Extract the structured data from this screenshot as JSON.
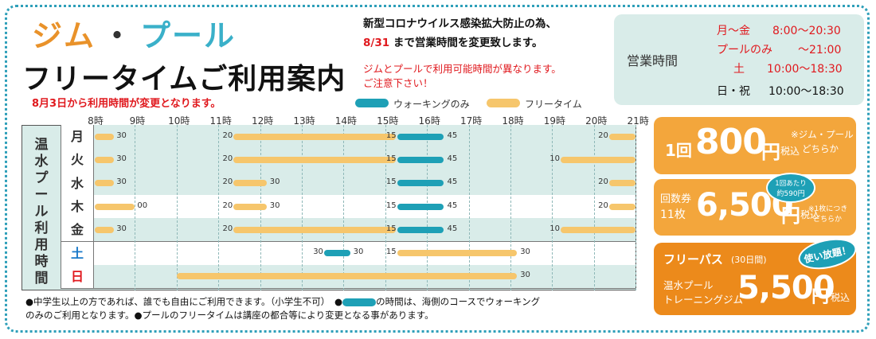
{
  "title": {
    "gym": "ジム",
    "sep": "・",
    "pool": "プール",
    "main": "フリータイムご利用案内"
  },
  "notice": "8月3日から利用時間が変更となります。",
  "covid": {
    "line1": "新型コロナウイルス感染拡大防止の為、",
    "line2_red": "8/31",
    "line2_rest": "まで営業時間を変更致します。",
    "line3": "ジムとプールで利用可能時間が異なります。",
    "line4": "ご注意下さい！"
  },
  "hours": {
    "label": "営業時間",
    "rows": [
      {
        "day": "月〜金",
        "time": "8:00〜20:30",
        "color": "#e0191e"
      },
      {
        "day": "プールのみ",
        "time": "〜21:00",
        "color": "#e0191e"
      },
      {
        "day": "土",
        "time": "10:00〜18:30",
        "color": "#e0191e"
      },
      {
        "day": "日・祝",
        "time": "10:00〜18:30",
        "color": "#111111"
      }
    ]
  },
  "legend": {
    "walking": "ウォーキングのみ",
    "free": "フリータイム",
    "walking_color": "#1ea0b6",
    "free_color": "#f6c66c"
  },
  "chart_data": {
    "type": "gantt",
    "ylabel": "温水プール利用時間",
    "hours": [
      "8時",
      "9時",
      "10時",
      "11時",
      "12時",
      "13時",
      "14時",
      "15時",
      "16時",
      "17時",
      "18時",
      "19時",
      "20時",
      "21時"
    ],
    "days": [
      {
        "day": "月",
        "color": "#333333",
        "bg": "#d9ece9",
        "segs": [
          {
            "s": 8,
            "e": 8.5,
            "type": "free",
            "l": "30"
          },
          {
            "s": 11.33,
            "e": 15.25,
            "type": "free",
            "l": "20"
          },
          {
            "s": 15.25,
            "e": 16.75,
            "type": "walk",
            "l": "15",
            "r": "45"
          },
          {
            "s": 20.33,
            "e": 21,
            "type": "free",
            "l": "20"
          }
        ]
      },
      {
        "day": "火",
        "color": "#333333",
        "bg": "#d9ece9",
        "segs": [
          {
            "s": 8,
            "e": 8.5,
            "type": "free",
            "l": "30"
          },
          {
            "s": 11.33,
            "e": 15.25,
            "type": "free",
            "l": "20"
          },
          {
            "s": 15.25,
            "e": 16.75,
            "type": "walk",
            "l": "15",
            "r": "45"
          },
          {
            "s": 19.17,
            "e": 21,
            "type": "free",
            "l": "10"
          }
        ]
      },
      {
        "day": "水",
        "color": "#333333",
        "bg": "#d9ece9",
        "segs": [
          {
            "s": 8,
            "e": 8.5,
            "type": "free",
            "l": "30"
          },
          {
            "s": 11.33,
            "e": 12.5,
            "type": "free",
            "l": "20",
            "r": "30"
          },
          {
            "s": 15.25,
            "e": 16.75,
            "type": "walk",
            "l": "15",
            "r": "45"
          },
          {
            "s": 20.33,
            "e": 21,
            "type": "free",
            "l": "20"
          }
        ]
      },
      {
        "day": "木",
        "color": "#333333",
        "bg": "#ffffff",
        "segs": [
          {
            "s": 8,
            "e": 9,
            "type": "free",
            "l": "00"
          },
          {
            "s": 11.33,
            "e": 12.5,
            "type": "free",
            "l": "20",
            "r": "30"
          },
          {
            "s": 15.25,
            "e": 16.75,
            "type": "walk",
            "l": "15",
            "r": "45"
          },
          {
            "s": 20.33,
            "e": 21,
            "type": "free",
            "l": "20"
          }
        ]
      },
      {
        "day": "金",
        "color": "#333333",
        "bg": "#d9ece9",
        "segs": [
          {
            "s": 8,
            "e": 8.5,
            "type": "free",
            "l": "30"
          },
          {
            "s": 11.33,
            "e": 15.25,
            "type": "free",
            "l": "20"
          },
          {
            "s": 15.25,
            "e": 16.75,
            "type": "walk",
            "l": "15",
            "r": "45"
          },
          {
            "s": 19.17,
            "e": 21,
            "type": "free",
            "l": "10"
          }
        ]
      },
      {
        "day": "土",
        "color": "#1a79c9",
        "bg": "#ffffff",
        "segs": [
          {
            "s": 13.5,
            "e": 14.5,
            "type": "walk",
            "l": "30",
            "r": "30"
          },
          {
            "s": 15.25,
            "e": 18.5,
            "type": "free",
            "l": "15",
            "r": "30"
          }
        ]
      },
      {
        "day": "日",
        "color": "#e0191e",
        "bg": "#d9ece9",
        "segs": [
          {
            "s": 10,
            "e": 18.5,
            "type": "free",
            "r": "30"
          }
        ]
      }
    ]
  },
  "footnote": {
    "line1a": "●中学生以上の方であれば、誰でも自由にご利用できます。（小学生不可）　●",
    "line1b": "の時間は、海側のコースでウォーキング",
    "line2": "のみのご利用となります。●プールのフリータイムは講座の都合等により変更となる事があります。"
  },
  "price1": {
    "prefix": "1回",
    "amount": "800",
    "unit": "円",
    "tax": "税込",
    "note1": "※ジム・プール",
    "note2": "どちらか"
  },
  "price2": {
    "label1": "回数券",
    "label2": "11枚",
    "amount": "6,500",
    "unit": "円",
    "tax": "税込",
    "badge1": "1回あたり",
    "badge2": "約590円",
    "note1": "※1枚につき",
    "note2": "どちらか"
  },
  "price3": {
    "label": "フリーパス",
    "period": "(30日間)",
    "badge": "使い放題！",
    "sub1": "温水プール",
    "sub2": "トレーニングジム",
    "amount": "5,500",
    "unit": "円",
    "tax": "税込"
  }
}
